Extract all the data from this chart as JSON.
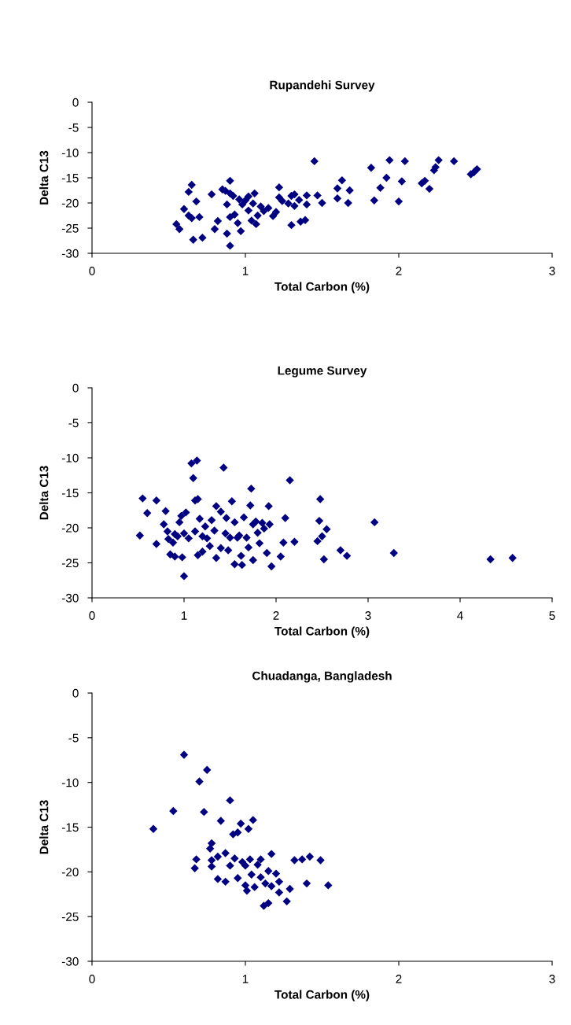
{
  "chart_data": [
    {
      "type": "scatter",
      "title": "Rupandehi Survey",
      "xlabel": "Total Carbon (%)",
      "ylabel": "Delta C13",
      "xlim": [
        0,
        3
      ],
      "ylim": [
        -30,
        0
      ],
      "xticks": [
        0,
        1,
        2,
        3
      ],
      "yticks": [
        -30,
        -25,
        -20,
        -15,
        -10,
        -5,
        0
      ],
      "marker": "diamond",
      "color": "#000080",
      "x": [
        0.55,
        0.57,
        0.6,
        0.63,
        0.65,
        0.63,
        0.65,
        0.66,
        0.68,
        0.7,
        0.72,
        0.78,
        0.8,
        0.82,
        0.85,
        0.87,
        0.88,
        0.88,
        0.9,
        0.9,
        0.9,
        0.9,
        0.92,
        0.93,
        0.95,
        0.96,
        0.97,
        0.98,
        1.0,
        1.02,
        1.02,
        1.04,
        1.05,
        1.06,
        1.07,
        1.08,
        1.1,
        1.12,
        1.15,
        1.18,
        1.2,
        1.22,
        1.22,
        1.24,
        1.28,
        1.3,
        1.3,
        1.32,
        1.32,
        1.35,
        1.36,
        1.39,
        1.4,
        1.4,
        1.45,
        1.47,
        1.5,
        1.6,
        1.6,
        1.63,
        1.67,
        1.68,
        1.82,
        1.84,
        1.88,
        1.92,
        1.94,
        2.0,
        2.02,
        2.04,
        2.15,
        2.17,
        2.2,
        2.23,
        2.24,
        2.26,
        2.36,
        2.47,
        2.49,
        2.51
      ],
      "values": [
        -24.2,
        -25.2,
        -21.2,
        -17.8,
        -16.4,
        -22.5,
        -23,
        -27.3,
        -19.7,
        -22.8,
        -26.9,
        -18.3,
        -25.2,
        -23.6,
        -17.3,
        -17.6,
        -20.3,
        -26.1,
        -15.6,
        -18.1,
        -22.8,
        -28.5,
        -18.6,
        -22.3,
        -24,
        -19.3,
        -25.6,
        -20.3,
        -19.5,
        -18.7,
        -21.5,
        -23.5,
        -20.1,
        -18.1,
        -24.2,
        -22.5,
        -20.7,
        -21.6,
        -21,
        -22.6,
        -21.8,
        -16.9,
        -18.9,
        -19.6,
        -20.1,
        -24.4,
        -18.6,
        -18.3,
        -20.6,
        -19.4,
        -23.7,
        -23.4,
        -18.5,
        -20.3,
        -11.7,
        -18.5,
        -20,
        -17.1,
        -19.1,
        -15.5,
        -20,
        -17.5,
        -13,
        -19.5,
        -17,
        -15,
        -11.5,
        -19.7,
        -15.7,
        -11.7,
        -16.1,
        -15.6,
        -17.2,
        -13.5,
        -12.9,
        -11.5,
        -11.7,
        -14.3,
        -13.9,
        -13.3
      ]
    },
    {
      "type": "scatter",
      "title": "Legume Survey",
      "xlabel": "Total Carbon (%)",
      "ylabel": "Delta C13",
      "xlim": [
        0,
        5
      ],
      "ylim": [
        -30,
        0
      ],
      "xticks": [
        0,
        1,
        2,
        3,
        4,
        5
      ],
      "yticks": [
        -30,
        -25,
        -20,
        -15,
        -10,
        -5,
        0
      ],
      "marker": "diamond",
      "color": "#000080",
      "x": [
        0.52,
        0.55,
        0.6,
        0.7,
        0.7,
        0.78,
        0.8,
        0.82,
        0.83,
        0.85,
        0.88,
        0.9,
        0.9,
        0.93,
        0.95,
        0.97,
        0.98,
        1.0,
        1.0,
        1.02,
        1.05,
        1.08,
        1.1,
        1.12,
        1.12,
        1.14,
        1.15,
        1.15,
        1.17,
        1.2,
        1.2,
        1.23,
        1.25,
        1.28,
        1.3,
        1.33,
        1.35,
        1.35,
        1.4,
        1.4,
        1.43,
        1.45,
        1.46,
        1.48,
        1.5,
        1.52,
        1.55,
        1.55,
        1.58,
        1.6,
        1.62,
        1.63,
        1.65,
        1.68,
        1.7,
        1.72,
        1.73,
        1.75,
        1.75,
        1.78,
        1.8,
        1.82,
        1.85,
        1.87,
        1.9,
        1.92,
        1.93,
        1.95,
        2.05,
        2.08,
        2.1,
        2.15,
        2.2,
        2.45,
        2.47,
        2.48,
        2.5,
        2.52,
        2.55,
        2.7,
        2.77,
        3.07,
        3.28,
        4.33,
        4.57
      ],
      "values": [
        -21.1,
        -15.8,
        -17.9,
        -16.1,
        -22.3,
        -19.5,
        -17.6,
        -20.5,
        -21.6,
        -23.8,
        -22.1,
        -24.1,
        -20.9,
        -21.2,
        -19.2,
        -18.3,
        -24.2,
        -26.9,
        -20.8,
        -17.8,
        -21.5,
        -10.8,
        -12.9,
        -16.1,
        -20.5,
        -10.4,
        -15.9,
        -23.9,
        -18.7,
        -21.2,
        -23.4,
        -19.8,
        -21.5,
        -22.6,
        -18.9,
        -20.4,
        -16.9,
        -24.3,
        -17.7,
        -22.9,
        -11.4,
        -20.8,
        -18.6,
        -23.2,
        -21.4,
        -16.2,
        -25.2,
        -19.2,
        -21.4,
        -21.1,
        -24,
        -25.3,
        -18.5,
        -21.4,
        -22.8,
        -16.8,
        -14.4,
        -19.5,
        -24.6,
        -19.1,
        -20.7,
        -22.2,
        -19.3,
        -20.1,
        -23.6,
        -16.9,
        -19.5,
        -25.5,
        -24.1,
        -22.1,
        -18.6,
        -13.2,
        -22,
        -21.9,
        -19,
        -15.9,
        -21.2,
        -24.5,
        -20.2,
        -23.2,
        -24,
        -19.2,
        -23.6,
        -24.5,
        -24.3
      ]
    },
    {
      "type": "scatter",
      "title": "Chuadanga, Bangladesh",
      "xlabel": "Total Carbon (%)",
      "ylabel": "Delta C13",
      "xlim": [
        0,
        3
      ],
      "ylim": [
        -30,
        0
      ],
      "xticks": [
        0,
        1,
        2,
        3
      ],
      "yticks": [
        -30,
        -25,
        -20,
        -15,
        -10,
        -5,
        0
      ],
      "marker": "diamond",
      "color": "#000080",
      "x": [
        0.4,
        0.53,
        0.6,
        0.67,
        0.68,
        0.7,
        0.73,
        0.75,
        0.77,
        0.78,
        0.78,
        0.78,
        0.82,
        0.82,
        0.84,
        0.87,
        0.87,
        0.9,
        0.9,
        0.92,
        0.93,
        0.95,
        0.95,
        0.97,
        0.98,
        1.0,
        1.0,
        1.01,
        1.02,
        1.03,
        1.04,
        1.05,
        1.06,
        1.08,
        1.1,
        1.1,
        1.12,
        1.13,
        1.15,
        1.15,
        1.17,
        1.17,
        1.2,
        1.22,
        1.22,
        1.27,
        1.29,
        1.32,
        1.37,
        1.4,
        1.42,
        1.49,
        1.54
      ],
      "values": [
        -15.2,
        -13.2,
        -6.9,
        -19.6,
        -18.6,
        -9.9,
        -13.3,
        -8.6,
        -17.4,
        -16.8,
        -18.7,
        -19.4,
        -18.3,
        -20.8,
        -14.3,
        -21.1,
        -17.9,
        -12,
        -19.3,
        -15.8,
        -18.5,
        -15.6,
        -20.7,
        -14.6,
        -18.9,
        -19.3,
        -21.5,
        -22.1,
        -15.2,
        -18.6,
        -20.3,
        -14.2,
        -21.7,
        -19.2,
        -18.6,
        -20.6,
        -23.8,
        -21.3,
        -19.9,
        -23.5,
        -18,
        -21.6,
        -20.2,
        -21.1,
        -22.3,
        -23.3,
        -21.9,
        -18.7,
        -18.6,
        -21.3,
        -18.3,
        -18.7,
        -21.5
      ]
    }
  ]
}
